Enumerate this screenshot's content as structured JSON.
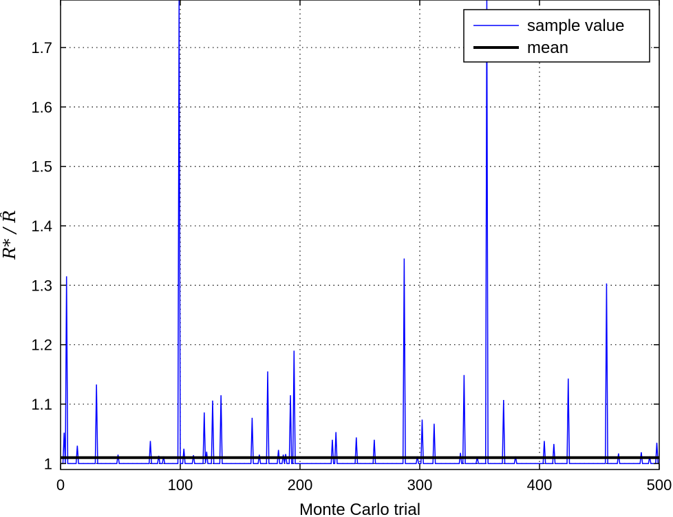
{
  "chart_data": {
    "type": "line",
    "title": "",
    "xlabel": "Monte Carlo trial",
    "ylabel": "R* / R̂",
    "xlim": [
      0,
      500
    ],
    "ylim": [
      0.99,
      1.78
    ],
    "x_ticks": [
      "0",
      "100",
      "200",
      "300",
      "400",
      "500"
    ],
    "y_ticks": [
      "1",
      "1.1",
      "1.2",
      "1.3",
      "1.4",
      "1.5",
      "1.6",
      "1.7"
    ],
    "grid": true,
    "legend_position": "top-right",
    "series": [
      {
        "name": "sample value",
        "color": "#0000ff",
        "baseline": 1.0,
        "peaks": [
          [
            3,
            1.052
          ],
          [
            5,
            1.315
          ],
          [
            14,
            1.03
          ],
          [
            30,
            1.133
          ],
          [
            48,
            1.015
          ],
          [
            75,
            1.038
          ],
          [
            82,
            1.013
          ],
          [
            86,
            1.012
          ],
          [
            99,
            1.78
          ],
          [
            103,
            1.025
          ],
          [
            111,
            1.014
          ],
          [
            120,
            1.086
          ],
          [
            122,
            1.02
          ],
          [
            127,
            1.106
          ],
          [
            134,
            1.115
          ],
          [
            160,
            1.077
          ],
          [
            166,
            1.015
          ],
          [
            173,
            1.155
          ],
          [
            182,
            1.023
          ],
          [
            186,
            1.015
          ],
          [
            188,
            1.016
          ],
          [
            192,
            1.115
          ],
          [
            195,
            1.19
          ],
          [
            227,
            1.04
          ],
          [
            230,
            1.053
          ],
          [
            247,
            1.044
          ],
          [
            262,
            1.04
          ],
          [
            287,
            1.345
          ],
          [
            298,
            1.012
          ],
          [
            302,
            1.074
          ],
          [
            312,
            1.067
          ],
          [
            334,
            1.018
          ],
          [
            337,
            1.149
          ],
          [
            348,
            1.011
          ],
          [
            356,
            1.78
          ],
          [
            370,
            1.107
          ],
          [
            380,
            1.012
          ],
          [
            404,
            1.038
          ],
          [
            412,
            1.033
          ],
          [
            424,
            1.143
          ],
          [
            456,
            1.303
          ],
          [
            466,
            1.017
          ],
          [
            485,
            1.019
          ],
          [
            492,
            1.012
          ],
          [
            498,
            1.035
          ]
        ]
      },
      {
        "name": "mean",
        "color": "#000000",
        "value": 1.01
      }
    ]
  }
}
